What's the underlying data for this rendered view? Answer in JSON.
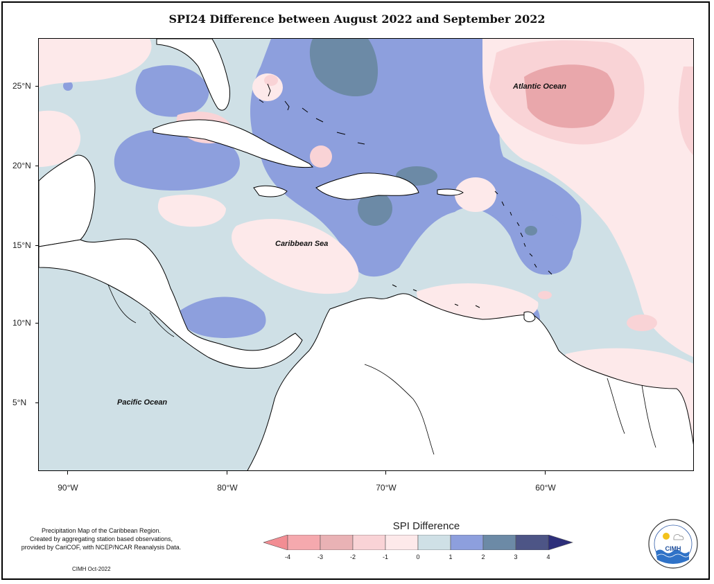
{
  "title": "SPI24 Difference between August 2022 and September 2022",
  "map": {
    "lat_labels": [
      "25°N",
      "20°N",
      "15°N",
      "10°N",
      "5°N"
    ],
    "lon_labels": [
      "90°W",
      "80°W",
      "70°W",
      "60°W"
    ],
    "places": {
      "atlantic": "Atlantic Ocean",
      "caribbean": "Caribbean Sea",
      "pacific": "Pacific Ocean"
    },
    "colors": {
      "minus3": "#e9a7ab",
      "minus2": "#f9d3d6",
      "minus1": "#fde9ea",
      "zero": "#cfe0e6",
      "plus1": "#8d9fdd",
      "plus2": "#6c8aa6",
      "plus3": "#4d5586",
      "minus4": "#f28d93",
      "plus4": "#2d2f7a"
    }
  },
  "notes": {
    "line1": "Precipitation Map of the Caribbean Region.",
    "line2": "Created by aggregating station based observations,",
    "line3": "provided by CariCOF, with NCEP/NCAR Reanalysis Data.",
    "credit": "CIMH Oct-2022"
  },
  "legend": {
    "title": "SPI Difference",
    "ticks": [
      "-4",
      "-3",
      "-2",
      "-1",
      "0",
      "1",
      "2",
      "3",
      "4"
    ]
  },
  "logo": {
    "text": "CIMH"
  }
}
